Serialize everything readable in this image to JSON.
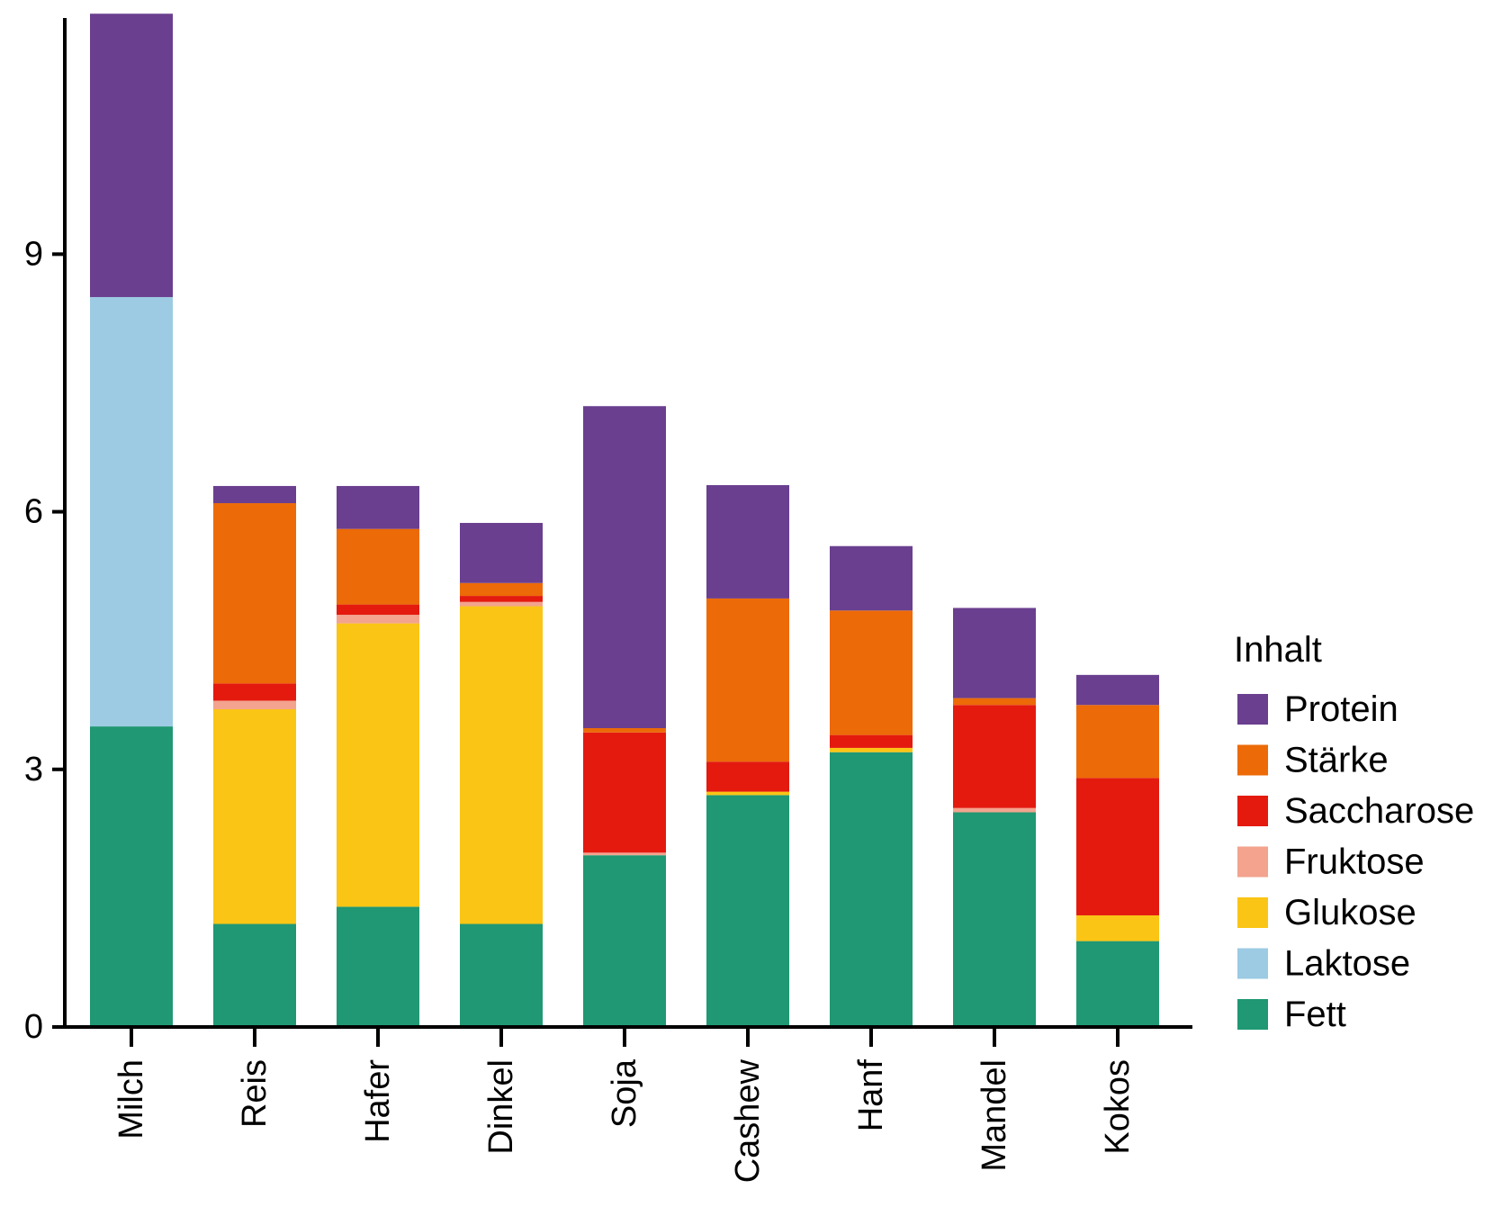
{
  "chart_data": {
    "type": "bar",
    "stacked": true,
    "categories": [
      "Milch",
      "Reis",
      "Hafer",
      "Dinkel",
      "Soja",
      "Cashew",
      "Hanf",
      "Mandel",
      "Kokos"
    ],
    "series": [
      {
        "name": "Fett",
        "color": "#1f9873",
        "values": [
          3.5,
          1.2,
          1.4,
          1.2,
          2.0,
          2.7,
          3.2,
          2.5,
          1.0
        ]
      },
      {
        "name": "Laktose",
        "color": "#9ccbe3",
        "values": [
          5.0,
          0,
          0,
          0,
          0,
          0,
          0,
          0,
          0
        ]
      },
      {
        "name": "Glukose",
        "color": "#fac515",
        "values": [
          0,
          2.5,
          3.3,
          3.7,
          0,
          0.04,
          0.05,
          0,
          0.3
        ]
      },
      {
        "name": "Fruktose",
        "color": "#f3a38e",
        "values": [
          0,
          0.1,
          0.1,
          0.05,
          0.03,
          0,
          0,
          0.05,
          0
        ]
      },
      {
        "name": "Saccharose",
        "color": "#e41a0f",
        "values": [
          0,
          0.2,
          0.12,
          0.07,
          1.4,
          0.35,
          0.15,
          1.2,
          1.6
        ]
      },
      {
        "name": "Stärke",
        "color": "#ec6a07",
        "values": [
          0,
          2.1,
          0.88,
          0.15,
          0.05,
          1.9,
          1.45,
          0.08,
          0.85
        ]
      },
      {
        "name": "Protein",
        "color": "#6a3f8f",
        "values": [
          3.3,
          0.2,
          0.5,
          0.7,
          3.75,
          1.32,
          0.75,
          1.05,
          0.35
        ]
      }
    ],
    "y_ticks": [
      "0",
      "3",
      "6",
      "9"
    ],
    "ylim": [
      0,
      11.75
    ],
    "xlabel": "",
    "ylabel": "",
    "x_tick_rotation": "vertical",
    "legend": {
      "title": "Inhalt",
      "placement": "right",
      "order": [
        "Protein",
        "Stärke",
        "Saccharose",
        "Fruktose",
        "Glukose",
        "Laktose",
        "Fett"
      ]
    },
    "grid": false
  }
}
